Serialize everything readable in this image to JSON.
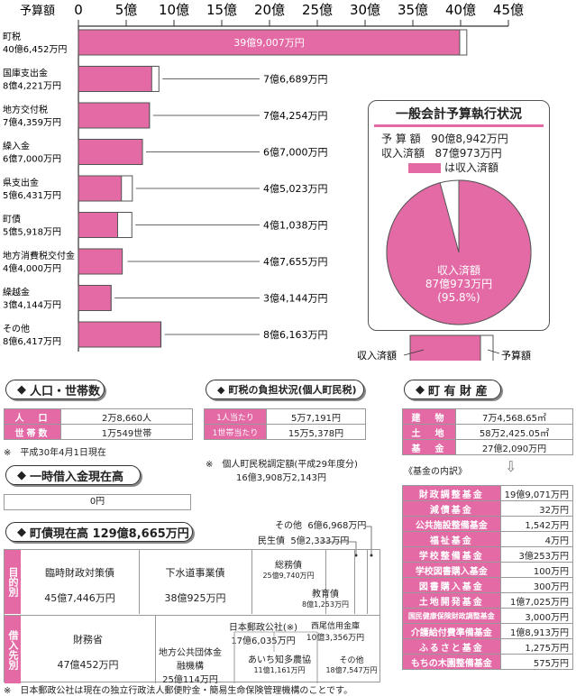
{
  "chart_data": {
    "type": "bar",
    "axis_label": "予算額",
    "unit_tick_labels": [
      "0",
      "5億",
      "10億",
      "15億",
      "20億",
      "25億",
      "30億",
      "35億",
      "40億",
      "45億"
    ],
    "ticks": [
      0,
      5,
      10,
      15,
      20,
      25,
      30,
      35,
      40,
      45
    ],
    "xlim": [
      0,
      45
    ],
    "series": [
      {
        "name": "予算額",
        "values": [
          40.6452,
          8.4221,
          7.4359,
          6.7,
          5.6431,
          5.5918,
          4.4,
          3.4144,
          8.6417
        ]
      },
      {
        "name": "収入済額",
        "values": [
          39.9007,
          7.6689,
          7.4254,
          6.7,
          4.5023,
          4.1038,
          4.7655,
          3.4144,
          8.6163
        ]
      }
    ],
    "categories": [
      {
        "name": "町税",
        "budget": "40億6,452万円",
        "received": "39億9,007万円"
      },
      {
        "name": "国庫支出金",
        "budget": "8億4,221万円",
        "received": "7億6,689万円"
      },
      {
        "name": "地方交付税",
        "budget": "7億4,359万円",
        "received": "7億4,254万円"
      },
      {
        "name": "繰入金",
        "budget": "6億7,000万円",
        "received": "6億7,000万円"
      },
      {
        "name": "県支出金",
        "budget": "5億6,431万円",
        "received": "4億5,023万円"
      },
      {
        "name": "町債",
        "budget": "5億5,918万円",
        "received": "4億1,038万円"
      },
      {
        "name": "地方消費税交付金",
        "budget": "4億4,000万円",
        "received": "4億7,655万円"
      },
      {
        "name": "繰越金",
        "budget": "3億4,144万円",
        "received": "3億4,144万円"
      },
      {
        "name": "その他",
        "budget": "8億6,417万円",
        "received": "8億6,163万円"
      }
    ],
    "legend": {
      "received": "収入済額",
      "budget": "予算額"
    }
  },
  "execution": {
    "title": "一般会計予算執行状況",
    "budget_label": "予 算 額",
    "budget_value": "90億8,942万円",
    "received_label": "収入済額",
    "received_value": "87億973万円",
    "legend_text": "は収入済額",
    "pie_label1": "収入済額",
    "pie_label2": "87億973万円",
    "pie_label3": "(95.8%)",
    "pie_percent": 95.8
  },
  "population": {
    "title": "人口・世帯数",
    "rows": [
      {
        "label": "人　口",
        "value": "2万8,660人"
      },
      {
        "label": "世帯数",
        "value": "1万549世帯"
      }
    ],
    "note": "※　平成30年4月1日現在"
  },
  "tax_burden": {
    "title": "町税の負担状況(個人町民税)",
    "rows": [
      {
        "label": "1人当たり",
        "value": "5万7,191円"
      },
      {
        "label": "1世帯当たり",
        "value": "15万5,378円"
      }
    ],
    "note1": "※　個人町民税調定額(平成29年度分)",
    "note2": "16億3,908万2,143円"
  },
  "property": {
    "title": "町 有 財 産",
    "rows": [
      {
        "label": "建　物",
        "value": "7万4,568.65㎡"
      },
      {
        "label": "土　地",
        "value": "58万2,425.05㎡"
      },
      {
        "label": "基　金",
        "value": "27億2,090万円"
      }
    ],
    "funds_title": "《基金の内訳》",
    "funds": [
      {
        "label": "財政調整基金",
        "value": "19億9,071万円"
      },
      {
        "label": "減債基金",
        "value": "32万円"
      },
      {
        "label": "公共施設整備基金",
        "value": "1,542万円"
      },
      {
        "label": "福祉基金",
        "value": "4万円"
      },
      {
        "label": "学校整備基金",
        "value": "3億253万円"
      },
      {
        "label": "学校図書購入基金",
        "value": "100万円"
      },
      {
        "label": "図書購入基金",
        "value": "300万円"
      },
      {
        "label": "土地開発基金",
        "value": "1億7,025万円"
      },
      {
        "label": "国民健康保険財政調整基金",
        "value": "3,000万円"
      },
      {
        "label": "介護給付費準備基金",
        "value": "1億8,913万円"
      },
      {
        "label": "ふるさと基金",
        "value": "1,275万円"
      },
      {
        "label": "もちの木園整備基金",
        "value": "575万円"
      }
    ]
  },
  "temp_loan": {
    "title": "一時借入金現在高",
    "value": "0円"
  },
  "debt": {
    "title": "町債現在高 129億8,665万円",
    "purpose_label": "目的別",
    "purpose": [
      {
        "name": "臨時財政対策債",
        "value": "45億7,446万円"
      },
      {
        "name": "下水道事業債",
        "value": "38億925万円"
      },
      {
        "name": "総務債",
        "value": "25億9,740万円"
      },
      {
        "name": "教育債",
        "value": "8億1,253万円"
      },
      {
        "name": "民生債",
        "value": "5億2,333万円"
      },
      {
        "name": "その他",
        "value": "6億6,968万円"
      }
    ],
    "lender_label": "借入先別",
    "lenders": [
      {
        "name": "財務省",
        "value": "47億452万円"
      },
      {
        "name": "日本郵政公社(※)",
        "value": "17億6,035万円"
      },
      {
        "name": "西尾信用金庫",
        "value": "10億3,356万円"
      },
      {
        "name": "地方公共団体金融機構",
        "value": "25億114万円"
      },
      {
        "name": "あいち知多農協",
        "value": "11億1,161万円"
      },
      {
        "name": "その他",
        "value": "18億7,547万円"
      }
    ],
    "footnote": "※　日本郵政公社は現在の独立行政法人郵便貯金・簡易生命保険管理機構のことです。"
  },
  "colors": {
    "pink": "#e46aa5",
    "border": "#333333"
  }
}
